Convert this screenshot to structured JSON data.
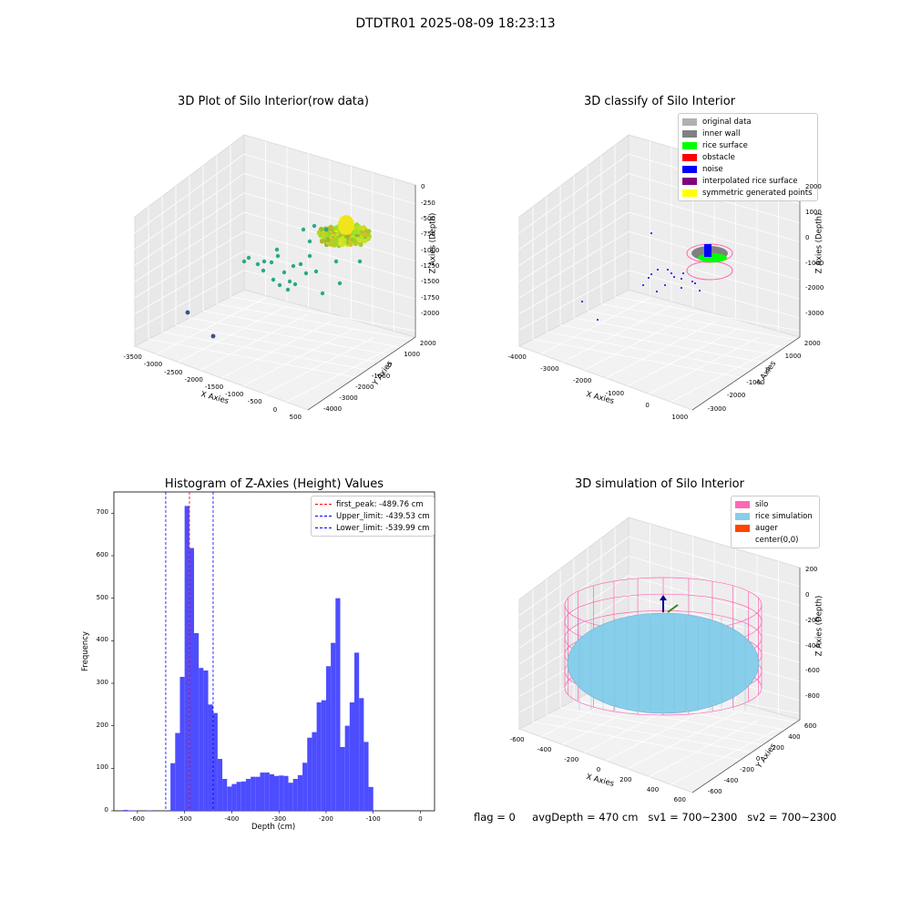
{
  "suptitle": "DTDTR01 2025-08-09 18:23:13",
  "footer": {
    "flag": "flag = 0",
    "avg_depth": "avgDepth = 470 cm",
    "sv1": "sv1 = 700~2300",
    "sv2": "sv2 = 700~2300"
  },
  "colors": {
    "hist_bar": "#4d4dff",
    "first_peak": "#ff0000",
    "limit": "#0000ff",
    "silo": "#ff69b4",
    "rice_sim": "#87ceeb",
    "auger": "#ff4500",
    "pane_bg": "#f2f2f2"
  },
  "plots": {
    "raw": {
      "title": "3D Plot of Silo Interior(row data)",
      "xlabel": "X Axies",
      "ylabel": "Y Axies",
      "zlabel": "Z Axies (Depth)",
      "x_ticks": [
        "-3500",
        "-3000",
        "-2500",
        "-2000",
        "-1500",
        "-1000",
        "-500",
        "0",
        "500"
      ],
      "y_ticks": [
        "2000",
        "1000",
        "0",
        "-1000",
        "-2000",
        "-3000",
        "-4000"
      ],
      "z_ticks": [
        "0",
        "-250",
        "-500",
        "-750",
        "-1000",
        "-1250",
        "-1500",
        "-1750",
        "-2000"
      ]
    },
    "classify": {
      "title": "3D classify of Silo Interior",
      "xlabel": "X Axies",
      "ylabel": "Y Axies",
      "zlabel": "Z Axies (Depth)",
      "x_ticks": [
        "-4000",
        "-3000",
        "-2000",
        "-1000",
        "0",
        "1000"
      ],
      "y_ticks": [
        "2000",
        "1000",
        "0",
        "-1000",
        "-2000",
        "-3000"
      ],
      "z_ticks": [
        "2000",
        "1000",
        "0",
        "-1000",
        "-2000",
        "-3000"
      ],
      "z_tick_partial": "000",
      "legend": [
        {
          "label": "original data",
          "color": "#b0b0b0"
        },
        {
          "label": "inner wall",
          "color": "#808080"
        },
        {
          "label": "rice surface",
          "color": "#00ff00"
        },
        {
          "label": "obstacle",
          "color": "#ff0000"
        },
        {
          "label": "noise",
          "color": "#0000ff"
        },
        {
          "label": "interpolated rice surface",
          "color": "#800080"
        },
        {
          "label": "symmetric generated points",
          "color": "#ffff00"
        }
      ]
    },
    "simulation": {
      "title": "3D simulation of Silo Interior",
      "xlabel": "X Axies",
      "ylabel": "Y Axies",
      "zlabel": "Z Axies (Depth)",
      "x_ticks": [
        "-600",
        "-400",
        "-200",
        "0",
        "200",
        "400",
        "600"
      ],
      "y_ticks": [
        "600",
        "400",
        "200",
        "0",
        "-200",
        "-400",
        "-600"
      ],
      "z_ticks": [
        "200",
        "0",
        "-200",
        "-400",
        "-600",
        "-800"
      ],
      "legend": [
        {
          "label": "silo",
          "color": "#ff69b4"
        },
        {
          "label": "rice simulation",
          "color": "#87ceeb"
        },
        {
          "label": "auger",
          "color": "#ff4500"
        },
        {
          "label": "center(0,0)",
          "color": ""
        }
      ]
    }
  },
  "chart_data": {
    "type": "bar",
    "title": "Histogram of Z-Axies (Height) Values",
    "xlabel": "Depth (cm)",
    "ylabel": "Frequency",
    "xlim": [
      -650,
      30
    ],
    "ylim": [
      0,
      750
    ],
    "x_ticks": [
      -600,
      -500,
      -400,
      -300,
      -200,
      -100,
      0
    ],
    "y_ticks": [
      0,
      100,
      200,
      300,
      400,
      500,
      600,
      700
    ],
    "bin_width": 10,
    "bins": [
      {
        "start": -630,
        "value": 2
      },
      {
        "start": -620,
        "value": 1
      },
      {
        "start": -610,
        "value": 1
      },
      {
        "start": -600,
        "value": 0
      },
      {
        "start": -590,
        "value": 0
      },
      {
        "start": -580,
        "value": 1
      },
      {
        "start": -570,
        "value": 0
      },
      {
        "start": -560,
        "value": 0
      },
      {
        "start": -550,
        "value": 0
      },
      {
        "start": -540,
        "value": 0
      },
      {
        "start": -530,
        "value": 112
      },
      {
        "start": -520,
        "value": 183
      },
      {
        "start": -510,
        "value": 315
      },
      {
        "start": -500,
        "value": 717
      },
      {
        "start": -490,
        "value": 618
      },
      {
        "start": -480,
        "value": 418
      },
      {
        "start": -470,
        "value": 336
      },
      {
        "start": -460,
        "value": 330
      },
      {
        "start": -450,
        "value": 250
      },
      {
        "start": -440,
        "value": 230
      },
      {
        "start": -430,
        "value": 122
      },
      {
        "start": -420,
        "value": 75
      },
      {
        "start": -410,
        "value": 57
      },
      {
        "start": -400,
        "value": 63
      },
      {
        "start": -390,
        "value": 68
      },
      {
        "start": -380,
        "value": 69
      },
      {
        "start": -370,
        "value": 75
      },
      {
        "start": -360,
        "value": 80
      },
      {
        "start": -350,
        "value": 80
      },
      {
        "start": -340,
        "value": 90
      },
      {
        "start": -330,
        "value": 90
      },
      {
        "start": -320,
        "value": 86
      },
      {
        "start": -310,
        "value": 82
      },
      {
        "start": -300,
        "value": 83
      },
      {
        "start": -290,
        "value": 82
      },
      {
        "start": -280,
        "value": 66
      },
      {
        "start": -270,
        "value": 75
      },
      {
        "start": -260,
        "value": 84
      },
      {
        "start": -250,
        "value": 113
      },
      {
        "start": -240,
        "value": 172
      },
      {
        "start": -230,
        "value": 185
      },
      {
        "start": -220,
        "value": 255
      },
      {
        "start": -210,
        "value": 260
      },
      {
        "start": -200,
        "value": 340
      },
      {
        "start": -190,
        "value": 395
      },
      {
        "start": -180,
        "value": 500
      },
      {
        "start": -170,
        "value": 150
      },
      {
        "start": -160,
        "value": 200
      },
      {
        "start": -150,
        "value": 255
      },
      {
        "start": -140,
        "value": 372
      },
      {
        "start": -130,
        "value": 265
      },
      {
        "start": -120,
        "value": 162
      },
      {
        "start": -110,
        "value": 56
      }
    ],
    "lines": [
      {
        "name": "first_peak: -489.76 cm",
        "x": -489.76,
        "color": "#ff0000"
      },
      {
        "name": "Upper_limit: -439.53 cm",
        "x": -439.53,
        "color": "#0000ff"
      },
      {
        "name": "Lower_limit: -539.99 cm",
        "x": -539.99,
        "color": "#0000ff"
      }
    ],
    "legend_position": "upper right"
  }
}
